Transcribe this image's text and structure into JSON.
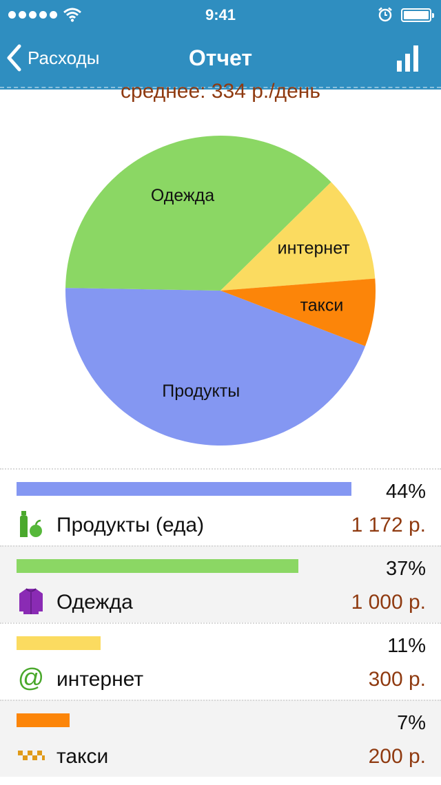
{
  "status_bar": {
    "time": "9:41",
    "icons": [
      "signal-dots-icon",
      "wifi-icon",
      "alarm-icon",
      "battery-icon"
    ]
  },
  "navbar": {
    "back_label": "Расходы",
    "title": "Отчет",
    "right_icon": "bar-chart-icon"
  },
  "summary": {
    "average_text": "среднее:   334 р./день"
  },
  "chart_data": {
    "type": "pie",
    "slices": [
      {
        "label": "Продукты",
        "percent": 44,
        "color": "#8497f2"
      },
      {
        "label": "Одежда",
        "percent": 37,
        "color": "#8bd764"
      },
      {
        "label": "интернет",
        "percent": 11,
        "color": "#fbdb60"
      },
      {
        "label": "такси",
        "percent": 7,
        "color": "#fc8509"
      }
    ]
  },
  "categories": [
    {
      "name": "Продукты (еда)",
      "percent_label": "44%",
      "percent": 44,
      "amount": "1 172 р.",
      "color": "#8497f2",
      "icon": "groceries-icon"
    },
    {
      "name": "Одежда",
      "percent_label": "37%",
      "percent": 37,
      "amount": "1 000 р.",
      "color": "#8bd764",
      "icon": "shirt-icon"
    },
    {
      "name": "интернет",
      "percent_label": "11%",
      "percent": 11,
      "amount": "300 р.",
      "color": "#fbdb60",
      "icon": "at-sign-icon"
    },
    {
      "name": "такси",
      "percent_label": "7%",
      "percent": 7,
      "amount": "200 р.",
      "color": "#fc8509",
      "icon": "taxi-checker-icon"
    }
  ]
}
